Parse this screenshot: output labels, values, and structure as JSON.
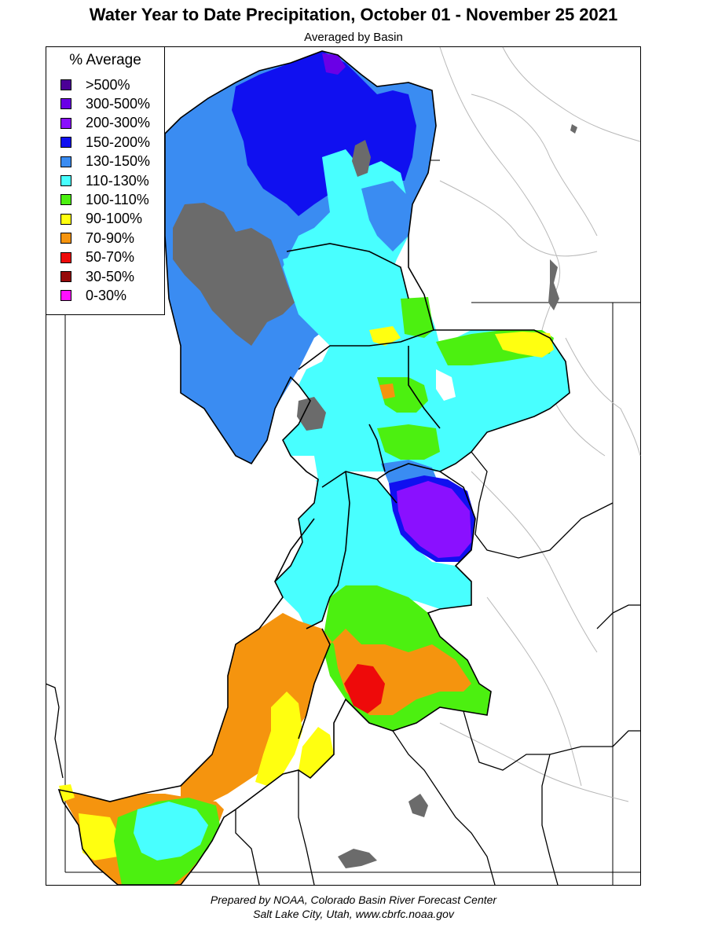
{
  "title": "Water Year to Date Precipitation, October 01  - November 25 2021",
  "subtitle": "Averaged by Basin",
  "legend": {
    "title": "% Average",
    "items": [
      {
        "label": ">500%",
        "color": "#4b0096"
      },
      {
        "label": "300-500%",
        "color": "#6a00e6"
      },
      {
        "label": "200-300%",
        "color": "#8a10ff"
      },
      {
        "label": "150-200%",
        "color": "#1010f0"
      },
      {
        "label": "130-150%",
        "color": "#3a8cf2"
      },
      {
        "label": "110-130%",
        "color": "#48ffff"
      },
      {
        "label": "100-110%",
        "color": "#4cf010"
      },
      {
        "label": "90-100%",
        "color": "#ffff10"
      },
      {
        "label": "70-90%",
        "color": "#f5940e"
      },
      {
        "label": "50-70%",
        "color": "#ee0a0a"
      },
      {
        "label": "30-50%",
        "color": "#960a0a"
      },
      {
        "label": "0-30%",
        "color": "#ff10ff"
      }
    ]
  },
  "no_data_color": "#6b6b6b",
  "credits": {
    "line1": "Prepared by NOAA, Colorado Basin River Forecast Center",
    "line2": "Salt Lake City, Utah, www.cbrfc.noaa.gov"
  }
}
